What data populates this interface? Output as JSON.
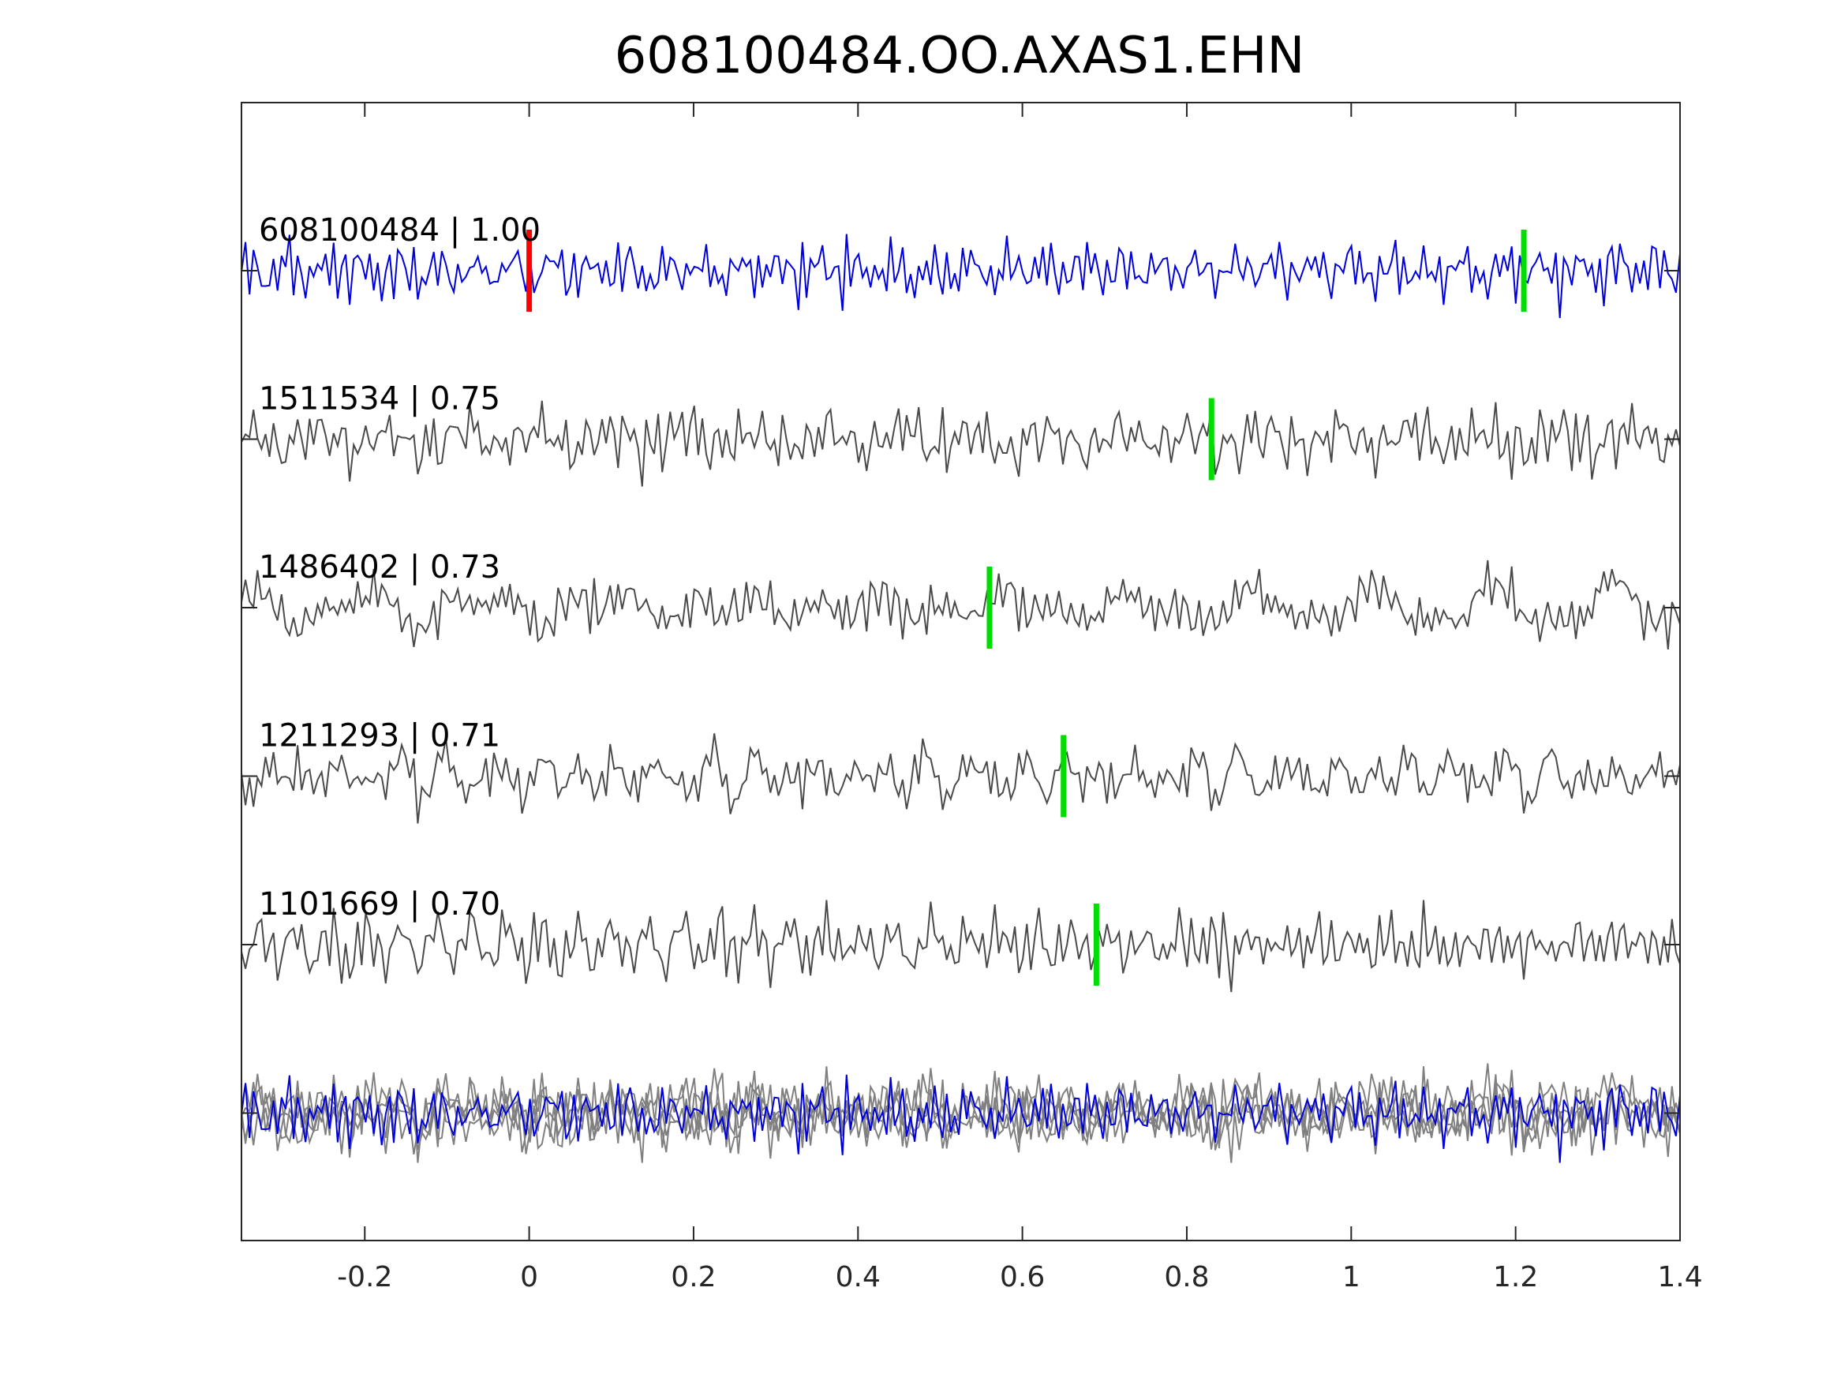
{
  "chart_data": {
    "type": "line",
    "title": "608100484.OO.AXAS1.EHN",
    "xlabel": "",
    "ylabel": "",
    "xlim": [
      -0.35,
      1.4
    ],
    "x_ticks": [
      -0.2,
      0,
      0.2,
      0.4,
      0.6,
      0.8,
      1,
      1.2,
      1.4
    ],
    "x_tick_labels": [
      "-0.2",
      "0",
      "0.2",
      "0.4",
      "0.6",
      "0.8",
      "1",
      "1.2",
      "1.4"
    ],
    "grid": false,
    "legend": "none",
    "colors": {
      "main_trace": "#0000dd",
      "other_trace": "#4a4a4a",
      "stack_other": "#808080",
      "ref_pick": "#ff0000",
      "pick": "#00dd00",
      "axes": "#262626"
    },
    "traces": [
      {
        "label": "608100484 | 1.00",
        "row": 0,
        "main": true,
        "pick_ref": 0.0,
        "pick": 1.21,
        "seed": 11,
        "amp": 1.0
      },
      {
        "label": "1511534 | 0.75",
        "row": 1,
        "main": false,
        "pick": 0.83,
        "seed": 23,
        "amp": 1.0
      },
      {
        "label": "1486402 | 0.73",
        "row": 2,
        "main": false,
        "pick": 0.56,
        "seed": 37,
        "amp": 1.0
      },
      {
        "label": "1211293 | 0.71",
        "row": 3,
        "main": false,
        "pick": 0.65,
        "seed": 41,
        "amp": 1.0
      },
      {
        "label": "1101669 | 0.70",
        "row": 4,
        "main": false,
        "pick": 0.69,
        "seed": 53,
        "amp": 1.0
      }
    ],
    "stack_row": 5
  }
}
